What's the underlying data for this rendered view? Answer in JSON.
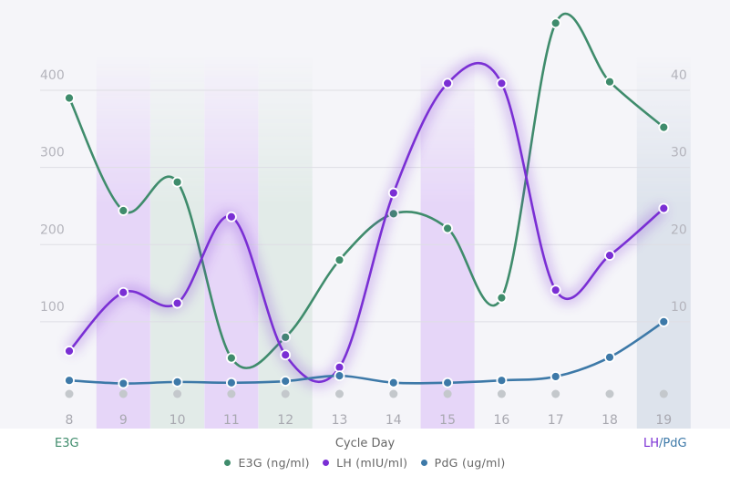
{
  "chart_data": {
    "type": "line",
    "xlabel": "Cycle Day",
    "left_axis_label": "E3G",
    "right_axis_label": {
      "lh": "LH",
      "sep": "/",
      "pdg": "PdG"
    },
    "categories": [
      8,
      9,
      10,
      11,
      12,
      13,
      14,
      15,
      16,
      17,
      18,
      19
    ],
    "highlighted_days": [
      {
        "day": 9,
        "color": "#e6d6f8"
      },
      {
        "day": 10,
        "color": "#e2ebe8"
      },
      {
        "day": 11,
        "color": "#e6d6f8"
      },
      {
        "day": 12,
        "color": "#e2ebe8"
      },
      {
        "day": 15,
        "color": "#e6d6f8"
      },
      {
        "day": 19,
        "color": "#dde3ec"
      }
    ],
    "left_yaxis": {
      "ticks": [
        100,
        200,
        300,
        400
      ],
      "ylim": [
        0,
        480
      ]
    },
    "right_yaxis": {
      "ticks": [
        10,
        20,
        30,
        40
      ],
      "ylim": [
        0,
        48
      ]
    },
    "grid": true,
    "legend_position": "bottom",
    "series": [
      {
        "name": "E3G (ng/ml)",
        "axis": "left",
        "color": "#3f8c6c",
        "values": [
          390,
          244,
          281,
          53,
          80,
          180,
          240,
          221,
          131,
          487,
          411,
          352
        ]
      },
      {
        "name": "LH (mIU/ml)",
        "axis": "right",
        "color": "#7a2fd4",
        "glow": true,
        "values": [
          6.2,
          13.8,
          12.4,
          23.6,
          5.7,
          4.1,
          26.7,
          40.9,
          40.9,
          14.1,
          18.6,
          24.7
        ]
      },
      {
        "name": "PdG (ug/ml)",
        "axis": "right",
        "color": "#3d79a8",
        "values": [
          2.4,
          2.0,
          2.2,
          2.1,
          2.3,
          3.0,
          2.1,
          2.1,
          2.4,
          2.9,
          5.4,
          10.0
        ]
      }
    ],
    "baseline_marker_color": "#c4c8cc"
  }
}
